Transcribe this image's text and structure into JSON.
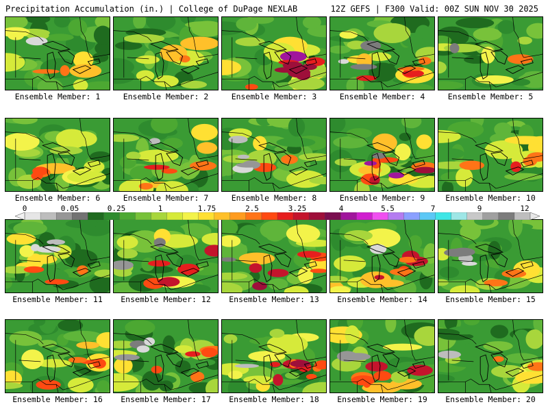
{
  "header": {
    "left": "Precipitation Accumulation (in.) | College of DuPage NEXLAB",
    "right": "12Z GEFS | F300 Valid: 00Z SUN NOV 30 2025"
  },
  "members": [
    {
      "label": "Ensemble Member: 1",
      "heavy": 0.15,
      "grey": 0.1,
      "wet": 0.55
    },
    {
      "label": "Ensemble Member: 2",
      "heavy": 0.1,
      "grey": 0.02,
      "wet": 0.55
    },
    {
      "label": "Ensemble Member: 3",
      "heavy": 0.85,
      "grey": 0.0,
      "wet": 0.75
    },
    {
      "label": "Ensemble Member: 4",
      "heavy": 0.45,
      "grey": 0.3,
      "wet": 0.6
    },
    {
      "label": "Ensemble Member: 5",
      "heavy": 0.05,
      "grey": 0.05,
      "wet": 0.45
    },
    {
      "label": "Ensemble Member: 6",
      "heavy": 0.3,
      "grey": 0.0,
      "wet": 0.7
    },
    {
      "label": "Ensemble Member: 7",
      "heavy": 0.4,
      "grey": 0.1,
      "wet": 0.6
    },
    {
      "label": "Ensemble Member: 8",
      "heavy": 0.2,
      "grey": 0.5,
      "wet": 0.5
    },
    {
      "label": "Ensemble Member: 9",
      "heavy": 0.8,
      "grey": 0.1,
      "wet": 0.7
    },
    {
      "label": "Ensemble Member: 10",
      "heavy": 0.35,
      "grey": 0.0,
      "wet": 0.7
    },
    {
      "label": "Ensemble Member: 11",
      "heavy": 0.25,
      "grey": 0.3,
      "wet": 0.55
    },
    {
      "label": "Ensemble Member: 12",
      "heavy": 0.45,
      "grey": 0.15,
      "wet": 0.6
    },
    {
      "label": "Ensemble Member: 13",
      "heavy": 0.6,
      "grey": 0.05,
      "wet": 0.65
    },
    {
      "label": "Ensemble Member: 14",
      "heavy": 0.55,
      "grey": 0.05,
      "wet": 0.7
    },
    {
      "label": "Ensemble Member: 15",
      "heavy": 0.15,
      "grey": 0.4,
      "wet": 0.5
    },
    {
      "label": "Ensemble Member: 16",
      "heavy": 0.4,
      "grey": 0.0,
      "wet": 0.6
    },
    {
      "label": "Ensemble Member: 17",
      "heavy": 0.45,
      "grey": 0.35,
      "wet": 0.6
    },
    {
      "label": "Ensemble Member: 18",
      "heavy": 0.9,
      "grey": 0.05,
      "wet": 0.7
    },
    {
      "label": "Ensemble Member: 19",
      "heavy": 0.55,
      "grey": 0.2,
      "wet": 0.65
    },
    {
      "label": "Ensemble Member: 20",
      "heavy": 0.15,
      "grey": 0.05,
      "wet": 0.5
    }
  ],
  "scale": {
    "ticks": [
      "0",
      "0.05",
      "0.25",
      "1",
      "1.75",
      "2.5",
      "3.25",
      "4",
      "5.5",
      "7",
      "9",
      "12"
    ],
    "colors": [
      "#e6e6e6",
      "#bdbdbd",
      "#969696",
      "#737373",
      "#1f6b1f",
      "#2e8b2e",
      "#4ca832",
      "#78c23a",
      "#a8d63c",
      "#d6ea3a",
      "#f3f34a",
      "#ffe033",
      "#ffc02a",
      "#ff9c1f",
      "#ff7417",
      "#ff4a12",
      "#e61e1e",
      "#c4142c",
      "#9e0f3a",
      "#7a0e4f",
      "#a0169c",
      "#d01fcf",
      "#f04ff0",
      "#b47cf0",
      "#8aa0ff",
      "#5cc8f6",
      "#3fe6e6",
      "#9ee6e6",
      "#c8c8c8",
      "#a0a0a0",
      "#7c7c7c",
      "#bebebe"
    ]
  }
}
